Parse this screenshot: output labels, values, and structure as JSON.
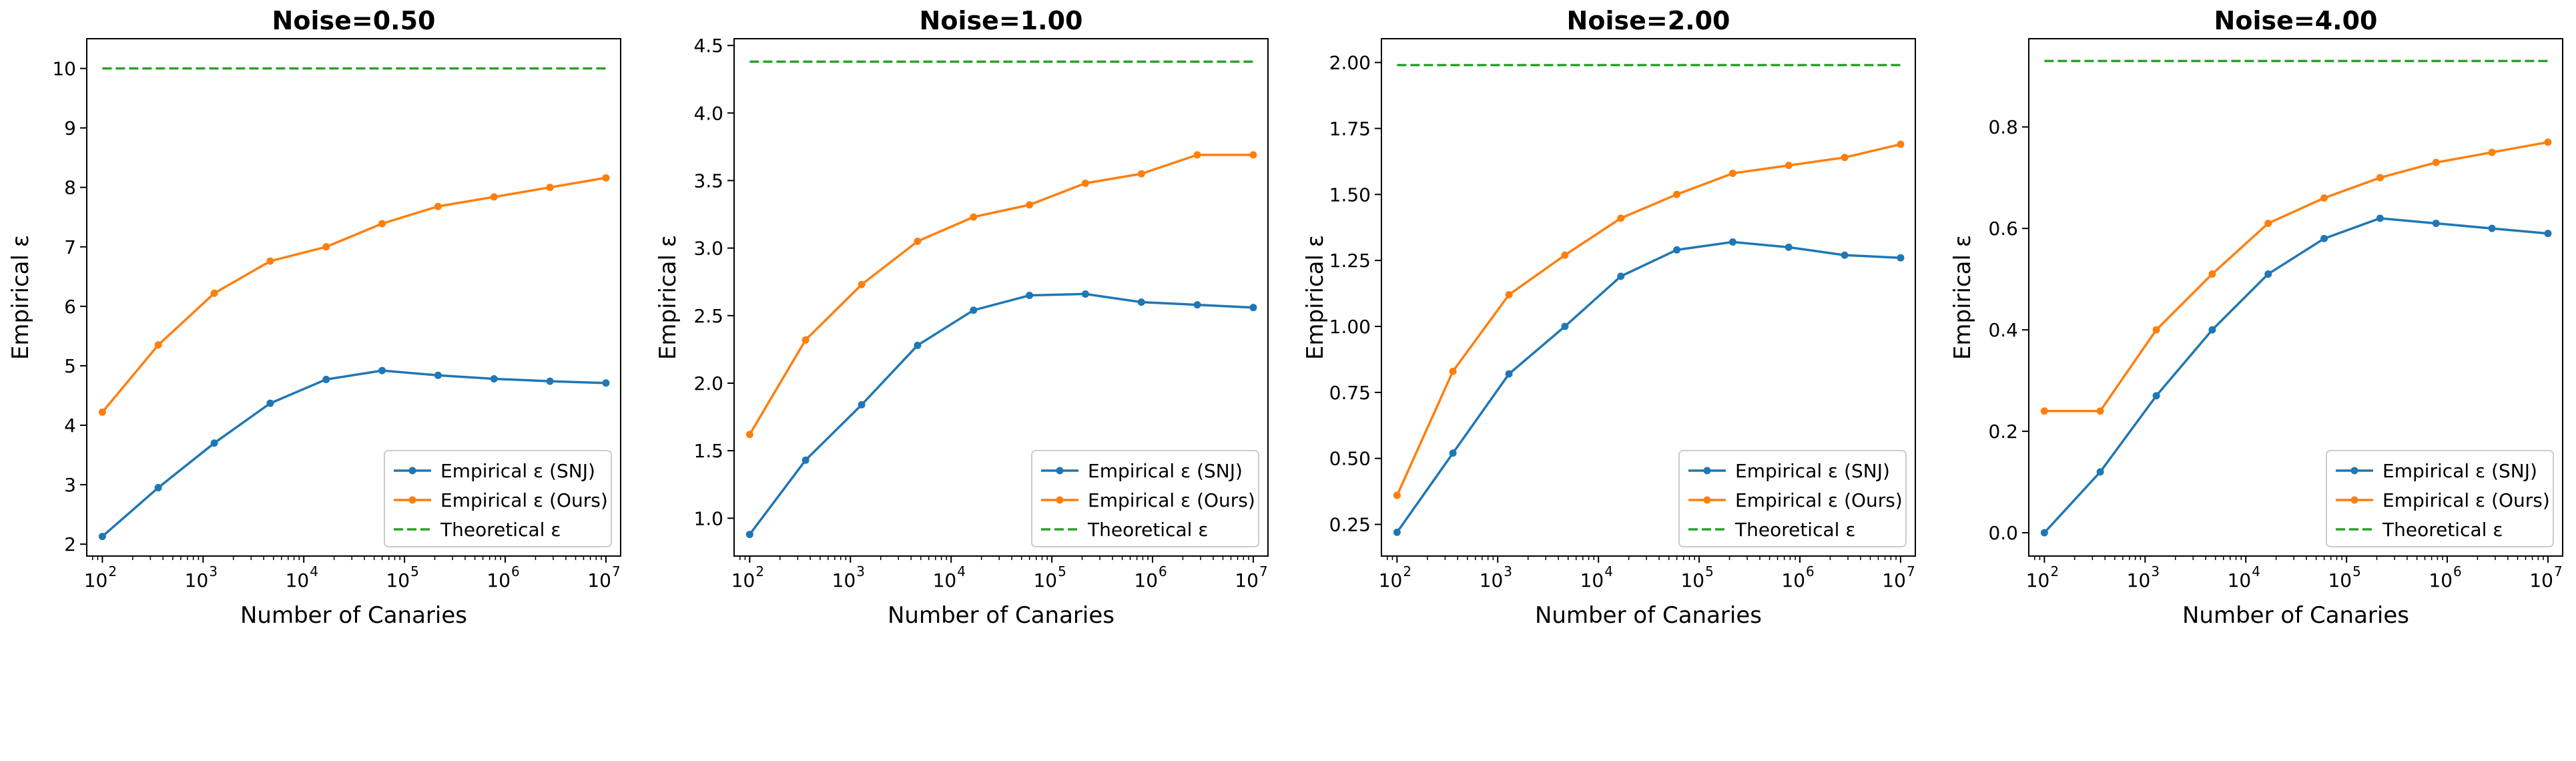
{
  "figure": {
    "legend_location": "lower right",
    "grid": false
  },
  "colors": {
    "snj": "#1f77b4",
    "ours": "#ff7f0e",
    "theory": "#2ca02c",
    "axes": "#000000",
    "legend_border": "#cccccc"
  },
  "chart_data": [
    {
      "type": "line",
      "title": "Noise=0.50",
      "xlabel": "Number of Canaries",
      "ylabel": "Empirical ε",
      "x_scale": "log",
      "xlim": [
        70,
        14000000
      ],
      "ylim": [
        1.8,
        10.5
      ],
      "x_ticks": [
        {
          "value": 100,
          "base": "10",
          "exp": "2"
        },
        {
          "value": 1000,
          "base": "10",
          "exp": "3"
        },
        {
          "value": 10000,
          "base": "10",
          "exp": "4"
        },
        {
          "value": 100000,
          "base": "10",
          "exp": "5"
        },
        {
          "value": 1000000,
          "base": "10",
          "exp": "6"
        },
        {
          "value": 10000000,
          "base": "10",
          "exp": "7"
        }
      ],
      "y_ticks": [
        {
          "value": 2,
          "label": "2"
        },
        {
          "value": 3,
          "label": "3"
        },
        {
          "value": 4,
          "label": "4"
        },
        {
          "value": 5,
          "label": "5"
        },
        {
          "value": 6,
          "label": "6"
        },
        {
          "value": 7,
          "label": "7"
        },
        {
          "value": 8,
          "label": "8"
        },
        {
          "value": 9,
          "label": "9"
        },
        {
          "value": 10,
          "label": "10"
        }
      ],
      "x": [
        100,
        359,
        1292,
        4642,
        16681,
        59948,
        215443,
        774264,
        2782559,
        10000000
      ],
      "series": [
        {
          "name": "Empirical ε (SNJ)",
          "color_key": "snj",
          "style": "solid",
          "marker": true,
          "values": [
            2.13,
            2.95,
            3.7,
            4.37,
            4.77,
            4.92,
            4.84,
            4.78,
            4.74,
            4.71
          ]
        },
        {
          "name": "Empirical ε (Ours)",
          "color_key": "ours",
          "style": "solid",
          "marker": true,
          "values": [
            4.22,
            5.35,
            6.22,
            6.76,
            7.0,
            7.39,
            7.68,
            7.84,
            8.0,
            8.16
          ]
        },
        {
          "name": "Theoretical ε",
          "color_key": "theory",
          "style": "dashed",
          "marker": false,
          "values": [
            10.0,
            10.0,
            10.0,
            10.0,
            10.0,
            10.0,
            10.0,
            10.0,
            10.0,
            10.0
          ]
        }
      ]
    },
    {
      "type": "line",
      "title": "Noise=1.00",
      "xlabel": "Number of Canaries",
      "ylabel": "Empirical ε",
      "x_scale": "log",
      "xlim": [
        70,
        14000000
      ],
      "ylim": [
        0.72,
        4.55
      ],
      "x_ticks": [
        {
          "value": 100,
          "base": "10",
          "exp": "2"
        },
        {
          "value": 1000,
          "base": "10",
          "exp": "3"
        },
        {
          "value": 10000,
          "base": "10",
          "exp": "4"
        },
        {
          "value": 100000,
          "base": "10",
          "exp": "5"
        },
        {
          "value": 1000000,
          "base": "10",
          "exp": "6"
        },
        {
          "value": 10000000,
          "base": "10",
          "exp": "7"
        }
      ],
      "y_ticks": [
        {
          "value": 1.0,
          "label": "1.0"
        },
        {
          "value": 1.5,
          "label": "1.5"
        },
        {
          "value": 2.0,
          "label": "2.0"
        },
        {
          "value": 2.5,
          "label": "2.5"
        },
        {
          "value": 3.0,
          "label": "3.0"
        },
        {
          "value": 3.5,
          "label": "3.5"
        },
        {
          "value": 4.0,
          "label": "4.0"
        },
        {
          "value": 4.5,
          "label": "4.5"
        }
      ],
      "x": [
        100,
        359,
        1292,
        4642,
        16681,
        59948,
        215443,
        774264,
        2782559,
        10000000
      ],
      "series": [
        {
          "name": "Empirical ε (SNJ)",
          "color_key": "snj",
          "style": "solid",
          "marker": true,
          "values": [
            0.88,
            1.43,
            1.84,
            2.28,
            2.54,
            2.65,
            2.66,
            2.6,
            2.58,
            2.56
          ]
        },
        {
          "name": "Empirical ε (Ours)",
          "color_key": "ours",
          "style": "solid",
          "marker": true,
          "values": [
            1.62,
            2.32,
            2.73,
            3.05,
            3.23,
            3.32,
            3.48,
            3.55,
            3.69,
            3.69
          ]
        },
        {
          "name": "Theoretical ε",
          "color_key": "theory",
          "style": "dashed",
          "marker": false,
          "values": [
            4.38,
            4.38,
            4.38,
            4.38,
            4.38,
            4.38,
            4.38,
            4.38,
            4.38,
            4.38
          ]
        }
      ]
    },
    {
      "type": "line",
      "title": "Noise=2.00",
      "xlabel": "Number of Canaries",
      "ylabel": "Empirical ε",
      "x_scale": "log",
      "xlim": [
        70,
        14000000
      ],
      "ylim": [
        0.13,
        2.09
      ],
      "x_ticks": [
        {
          "value": 100,
          "base": "10",
          "exp": "2"
        },
        {
          "value": 1000,
          "base": "10",
          "exp": "3"
        },
        {
          "value": 10000,
          "base": "10",
          "exp": "4"
        },
        {
          "value": 100000,
          "base": "10",
          "exp": "5"
        },
        {
          "value": 1000000,
          "base": "10",
          "exp": "6"
        },
        {
          "value": 10000000,
          "base": "10",
          "exp": "7"
        }
      ],
      "y_ticks": [
        {
          "value": 0.25,
          "label": "0.25"
        },
        {
          "value": 0.5,
          "label": "0.50"
        },
        {
          "value": 0.75,
          "label": "0.75"
        },
        {
          "value": 1.0,
          "label": "1.00"
        },
        {
          "value": 1.25,
          "label": "1.25"
        },
        {
          "value": 1.5,
          "label": "1.50"
        },
        {
          "value": 1.75,
          "label": "1.75"
        },
        {
          "value": 2.0,
          "label": "2.00"
        }
      ],
      "x": [
        100,
        359,
        1292,
        4642,
        16681,
        59948,
        215443,
        774264,
        2782559,
        10000000
      ],
      "series": [
        {
          "name": "Empirical ε (SNJ)",
          "color_key": "snj",
          "style": "solid",
          "marker": true,
          "values": [
            0.22,
            0.52,
            0.82,
            1.0,
            1.19,
            1.29,
            1.32,
            1.3,
            1.27,
            1.26
          ]
        },
        {
          "name": "Empirical ε (Ours)",
          "color_key": "ours",
          "style": "solid",
          "marker": true,
          "values": [
            0.36,
            0.83,
            1.12,
            1.27,
            1.41,
            1.5,
            1.58,
            1.61,
            1.64,
            1.69
          ]
        },
        {
          "name": "Theoretical ε",
          "color_key": "theory",
          "style": "dashed",
          "marker": false,
          "values": [
            1.99,
            1.99,
            1.99,
            1.99,
            1.99,
            1.99,
            1.99,
            1.99,
            1.99,
            1.99
          ]
        }
      ]
    },
    {
      "type": "line",
      "title": "Noise=4.00",
      "xlabel": "Number of Canaries",
      "ylabel": "Empirical ε",
      "x_scale": "log",
      "xlim": [
        70,
        14000000
      ],
      "ylim": [
        -0.046,
        0.974
      ],
      "x_ticks": [
        {
          "value": 100,
          "base": "10",
          "exp": "2"
        },
        {
          "value": 1000,
          "base": "10",
          "exp": "3"
        },
        {
          "value": 10000,
          "base": "10",
          "exp": "4"
        },
        {
          "value": 100000,
          "base": "10",
          "exp": "5"
        },
        {
          "value": 1000000,
          "base": "10",
          "exp": "6"
        },
        {
          "value": 10000000,
          "base": "10",
          "exp": "7"
        }
      ],
      "y_ticks": [
        {
          "value": 0.0,
          "label": "0.0"
        },
        {
          "value": 0.2,
          "label": "0.2"
        },
        {
          "value": 0.4,
          "label": "0.4"
        },
        {
          "value": 0.6,
          "label": "0.6"
        },
        {
          "value": 0.8,
          "label": "0.8"
        }
      ],
      "x": [
        100,
        359,
        1292,
        4642,
        16681,
        59948,
        215443,
        774264,
        2782559,
        10000000
      ],
      "series": [
        {
          "name": "Empirical ε (SNJ)",
          "color_key": "snj",
          "style": "solid",
          "marker": true,
          "values": [
            0.0,
            0.12,
            0.27,
            0.4,
            0.51,
            0.58,
            0.62,
            0.61,
            0.6,
            0.59
          ]
        },
        {
          "name": "Empirical ε (Ours)",
          "color_key": "ours",
          "style": "solid",
          "marker": true,
          "values": [
            0.24,
            0.24,
            0.4,
            0.51,
            0.61,
            0.66,
            0.7,
            0.73,
            0.75,
            0.77
          ]
        },
        {
          "name": "Theoretical ε",
          "color_key": "theory",
          "style": "dashed",
          "marker": false,
          "values": [
            0.93,
            0.93,
            0.93,
            0.93,
            0.93,
            0.93,
            0.93,
            0.93,
            0.93,
            0.93
          ]
        }
      ]
    }
  ]
}
